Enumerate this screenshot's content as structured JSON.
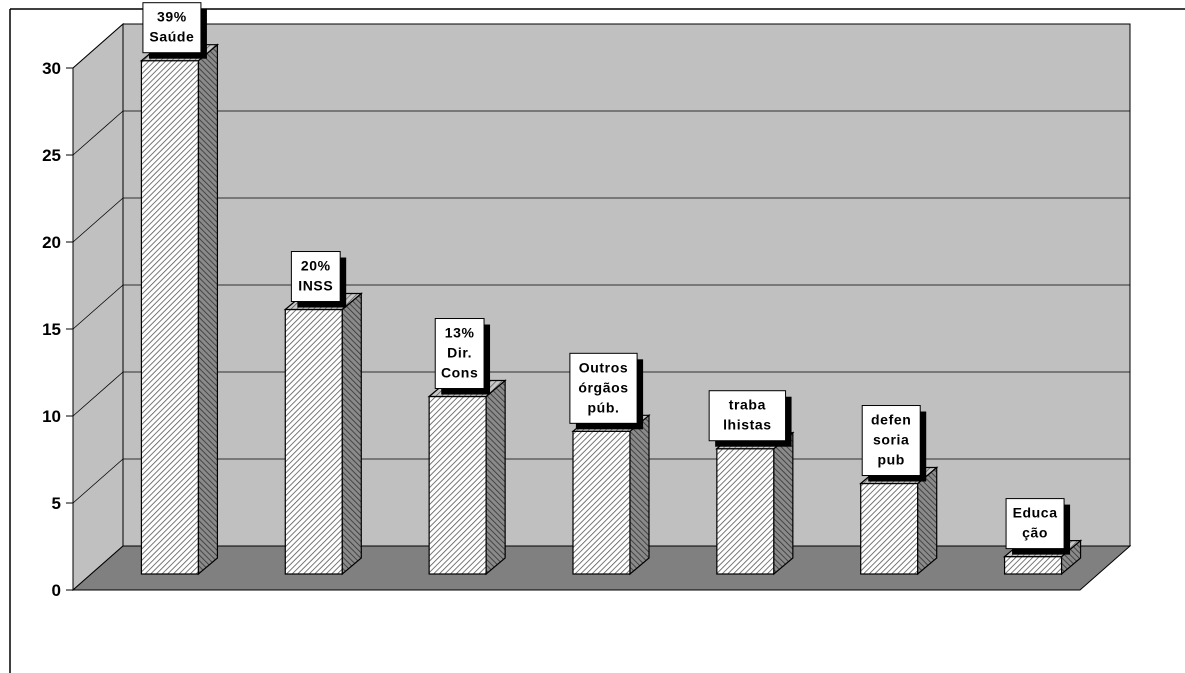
{
  "chart_data": {
    "type": "bar",
    "categories": [
      "39%\nSaúde",
      "20%\nINSS",
      "13%\nDir.\nCons",
      "Outros\nórgãos\npúb.",
      "traba\nlhistas",
      "defen\nsoria\npub",
      "Educa\nção"
    ],
    "values": [
      29.5,
      15.2,
      10.2,
      8.2,
      7.2,
      5.2,
      1.0
    ],
    "ylim": [
      0,
      30
    ],
    "yticks": [
      0,
      5,
      10,
      15,
      20,
      25,
      30
    ],
    "grid": true,
    "legend": "none",
    "colors": {
      "wall": "#c0c0c0",
      "floor": "#808080",
      "side_wall": "#c0c0c0",
      "bar_top": "#a8a8a8",
      "bar_side": "#6a6a6a",
      "grid": "#000000"
    }
  }
}
